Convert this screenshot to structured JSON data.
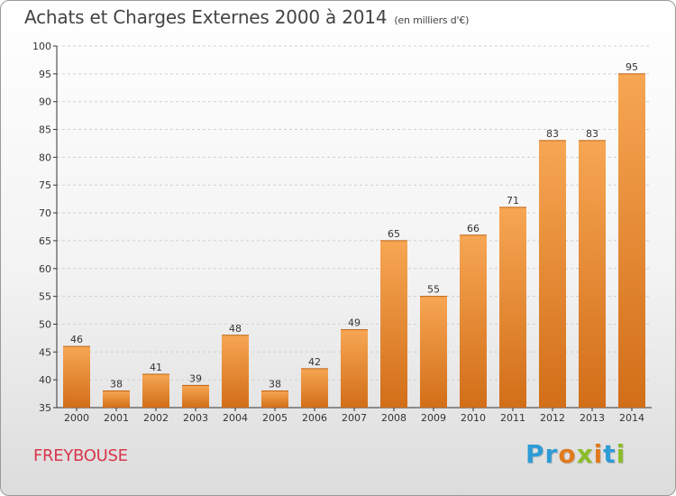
{
  "header": {
    "title": "Achats et Charges Externes 2000 à 2014",
    "unit_note": "(en milliers d'€)"
  },
  "footer": {
    "town": "FREYBOUSE",
    "logo_text": "Proxiti",
    "logo_letters": [
      {
        "ch": "P",
        "color": "#2e9bd6"
      },
      {
        "ch": "r",
        "color": "#2e9bd6"
      },
      {
        "ch": "o",
        "color": "#e07a1f"
      },
      {
        "ch": "x",
        "color": "#8bbd2a"
      },
      {
        "ch": "i",
        "color": "#e07a1f"
      },
      {
        "ch": "t",
        "color": "#2e9bd6"
      },
      {
        "ch": "i",
        "color": "#8bbd2a"
      }
    ]
  },
  "colors": {
    "bar_light": "#f7a653",
    "bar_dark": "#d26e18",
    "grid": "#d0d0d0",
    "axis": "#333333",
    "title": "#444444",
    "town": "#d8364c"
  },
  "chart_data": {
    "type": "bar",
    "title": "Achats et Charges Externes 2000 à 2014",
    "subtitle": "(en milliers d'€)",
    "categories": [
      "2000",
      "2001",
      "2002",
      "2003",
      "2004",
      "2005",
      "2006",
      "2007",
      "2008",
      "2009",
      "2010",
      "2011",
      "2012",
      "2013",
      "2014"
    ],
    "values": [
      46,
      38,
      41,
      39,
      48,
      38,
      42,
      49,
      65,
      55,
      66,
      71,
      83,
      83,
      95
    ],
    "ylim": [
      35,
      100
    ],
    "yticks": [
      35,
      40,
      45,
      50,
      55,
      60,
      65,
      70,
      75,
      80,
      85,
      90,
      95,
      100
    ],
    "grid": true,
    "data_labels": true
  }
}
